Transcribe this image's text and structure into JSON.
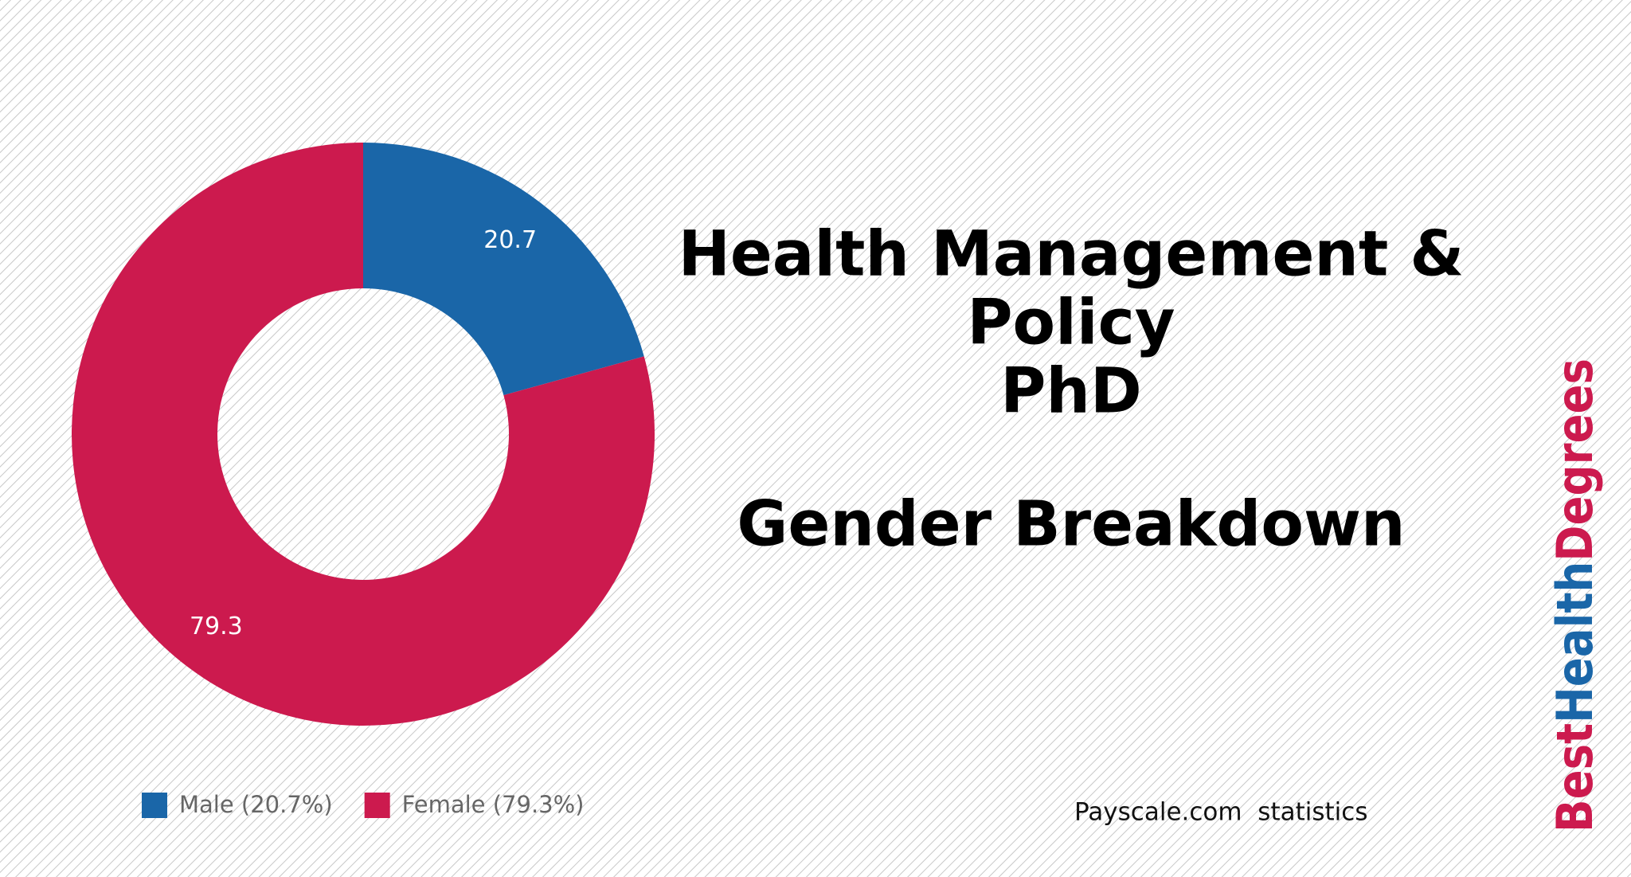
{
  "chart_data": {
    "type": "donut",
    "title": [
      "Health Management &",
      "Policy",
      "PhD",
      "Gender Breakdown"
    ],
    "categories": [
      "Male (20.7%)",
      "Female (79.3%)"
    ],
    "values": [
      20.7,
      79.3
    ],
    "colors": [
      "#1a66a8",
      "#cc1a4e"
    ],
    "source": "Payscale.com  statistics"
  },
  "logo": {
    "parts": [
      {
        "text": "Best",
        "color": "#cc1a4e"
      },
      {
        "text": "Health",
        "color": "#1a66a8"
      },
      {
        "text": "Degrees",
        "color": "#cc1a4e"
      }
    ]
  }
}
